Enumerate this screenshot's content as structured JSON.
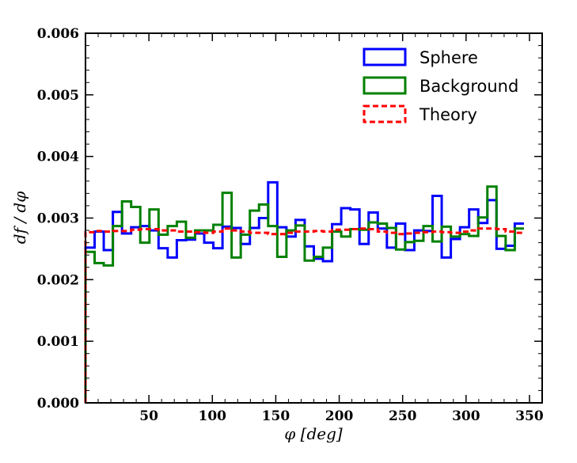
{
  "chart_data": {
    "type": "step",
    "xlabel": "φ [deg]",
    "ylabel": "df / dφ",
    "xlim": [
      0,
      360
    ],
    "ylim": [
      0,
      0.006
    ],
    "xticks": [
      50,
      100,
      150,
      200,
      250,
      300,
      350
    ],
    "xtick_labels": [
      "50",
      "100",
      "150",
      "200",
      "250",
      "300",
      "350"
    ],
    "yticks": [
      0,
      0.001,
      0.002,
      0.003,
      0.004,
      0.005,
      0.006
    ],
    "ytick_labels": [
      "0.000",
      "0.001",
      "0.002",
      "0.003",
      "0.004",
      "0.005",
      "0.006"
    ],
    "grid": false,
    "legend_position": "top-right",
    "bin_width": 7.2,
    "series": [
      {
        "name": "Sphere",
        "color": "#0000ff",
        "style": "solid",
        "values": [
          0.00252,
          0.00278,
          0.00248,
          0.0031,
          0.00275,
          0.00285,
          0.00287,
          0.0028,
          0.00251,
          0.00236,
          0.00264,
          0.00265,
          0.00275,
          0.0026,
          0.00251,
          0.00286,
          0.00284,
          0.00258,
          0.00284,
          0.003,
          0.00358,
          0.00285,
          0.0027,
          0.00297,
          0.00254,
          0.00234,
          0.0023,
          0.0029,
          0.00316,
          0.00314,
          0.00258,
          0.00309,
          0.00283,
          0.00252,
          0.00291,
          0.00248,
          0.0028,
          0.00279,
          0.00336,
          0.00236,
          0.00266,
          0.00285,
          0.00314,
          0.00292,
          0.00329,
          0.0025,
          0.00255,
          0.00291
        ]
      },
      {
        "name": "Background",
        "color": "#008000",
        "style": "solid",
        "values": [
          0.00245,
          0.00227,
          0.00223,
          0.00287,
          0.00327,
          0.00318,
          0.0026,
          0.00314,
          0.00273,
          0.00287,
          0.00294,
          0.00268,
          0.0028,
          0.0028,
          0.00289,
          0.00341,
          0.00236,
          0.00273,
          0.00312,
          0.00322,
          0.00287,
          0.00237,
          0.0028,
          0.00288,
          0.00231,
          0.00237,
          0.00252,
          0.00278,
          0.0027,
          0.00282,
          0.00281,
          0.00293,
          0.00291,
          0.00284,
          0.00249,
          0.00261,
          0.00263,
          0.00287,
          0.00262,
          0.00286,
          0.0027,
          0.00274,
          0.00271,
          0.00301,
          0.00351,
          0.00271,
          0.00248,
          0.00283
        ]
      },
      {
        "name": "Theory",
        "color": "#ff0000",
        "style": "dashed",
        "values": [
          0.00277,
          0.00279,
          0.00278,
          0.00279,
          0.00279,
          0.00281,
          0.00282,
          0.00282,
          0.0028,
          0.0028,
          0.00278,
          0.00278,
          0.00277,
          0.00276,
          0.00278,
          0.00283,
          0.0028,
          0.00278,
          0.00276,
          0.00276,
          0.00274,
          0.00274,
          0.00276,
          0.00278,
          0.00278,
          0.00279,
          0.00278,
          0.00281,
          0.00281,
          0.00282,
          0.00283,
          0.00282,
          0.00278,
          0.00276,
          0.00274,
          0.00275,
          0.00276,
          0.00277,
          0.00278,
          0.00277,
          0.00276,
          0.00278,
          0.0028,
          0.00283,
          0.00283,
          0.00282,
          0.00278,
          0.00276
        ]
      }
    ]
  }
}
